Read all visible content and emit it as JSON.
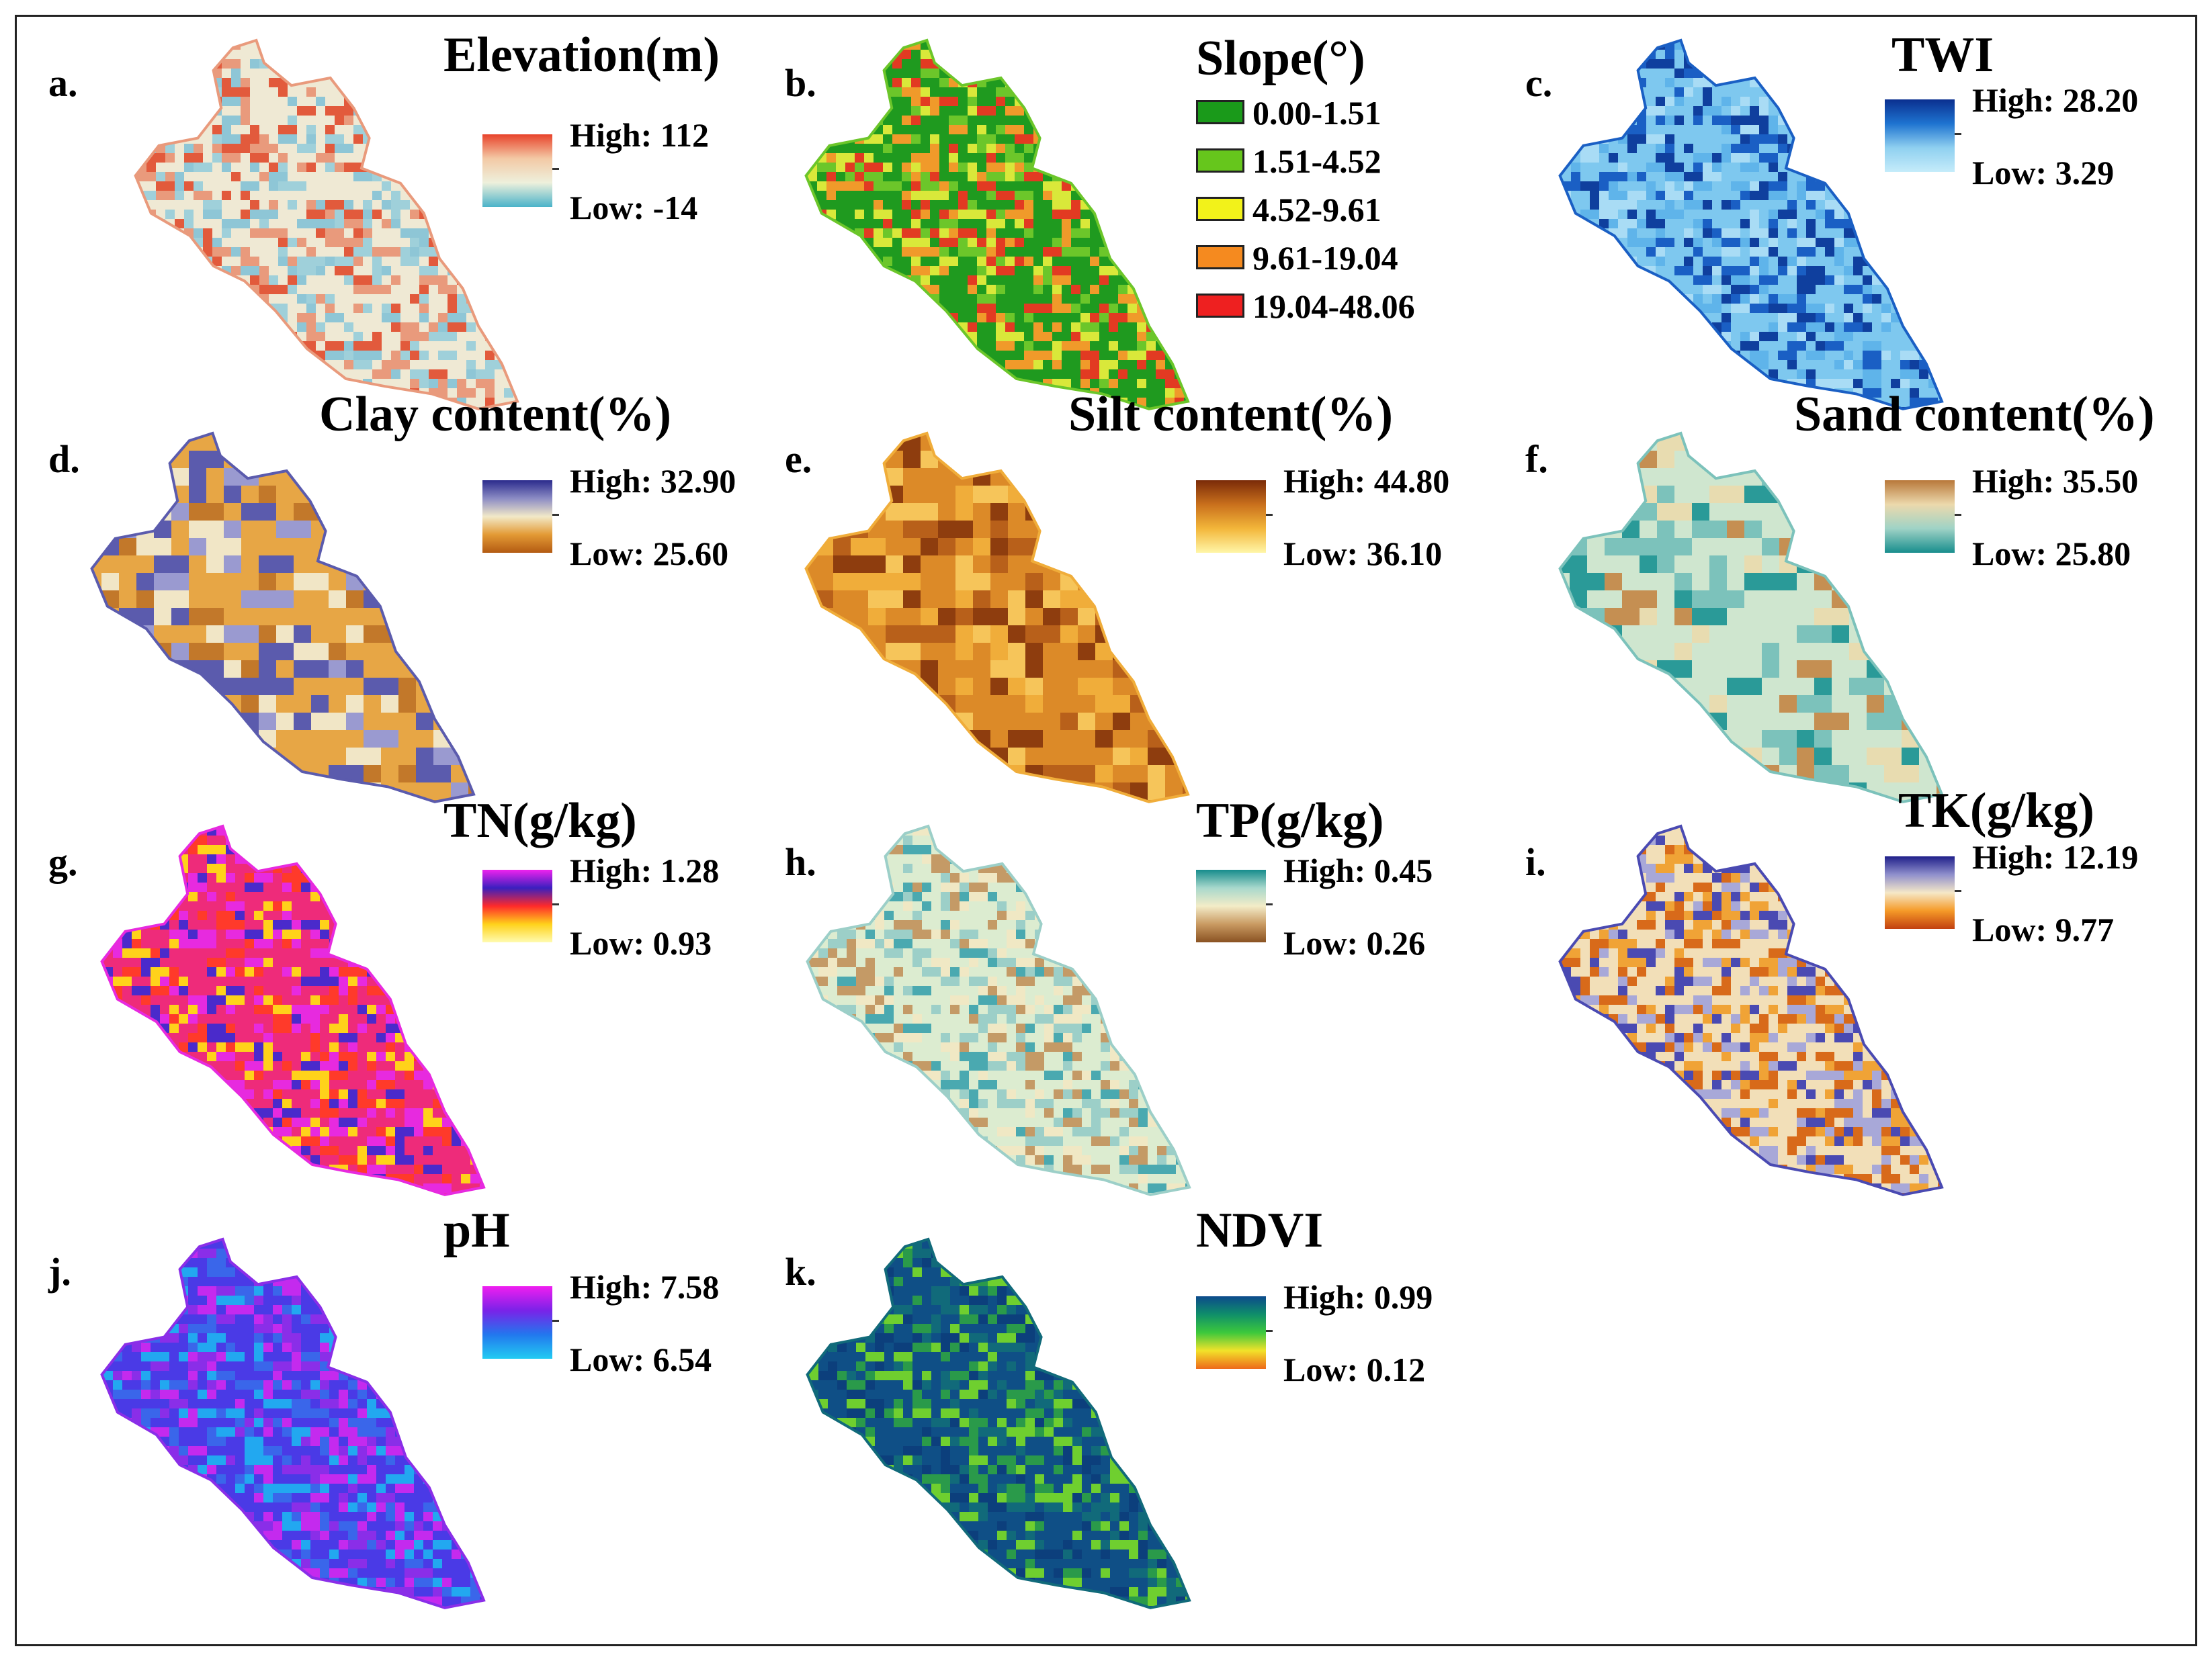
{
  "panels": [
    {
      "id": "a",
      "letter": "a.",
      "title": "Elevation(m)",
      "legend": {
        "type": "gradient",
        "high": "High: 112",
        "low": "Low: -14",
        "colors": [
          "#e8432b",
          "#f3c9a5",
          "#eef0dc",
          "#4bb3c9"
        ]
      },
      "map_colors": [
        "#efe9d4",
        "#e99a7c",
        "#9fd0da",
        "#e25a3c",
        "#8ec6d6"
      ]
    },
    {
      "id": "b",
      "letter": "b.",
      "title": "Slope(°)",
      "legend": {
        "type": "classes",
        "classes": [
          {
            "label": "0.00-1.51",
            "color": "#1a9a1a"
          },
          {
            "label": "1.51-4.52",
            "color": "#66c61c"
          },
          {
            "label": "4.52-9.61",
            "color": "#f2f21a"
          },
          {
            "label": "9.61-19.04",
            "color": "#f58a1f"
          },
          {
            "label": "19.04-48.06",
            "color": "#ee2020"
          }
        ]
      },
      "map_colors": [
        "#1f9a1f",
        "#6cc62a",
        "#d9e83a",
        "#f09a2a",
        "#e23a22"
      ]
    },
    {
      "id": "c",
      "letter": "c.",
      "title": "TWI",
      "legend": {
        "type": "gradient",
        "high": "High: 28.20",
        "low": "Low: 3.29",
        "colors": [
          "#0a2f8f",
          "#1e73d0",
          "#8fd0f0",
          "#c5ecfa"
        ]
      },
      "map_colors": [
        "#7ec8ef",
        "#1a5fc4",
        "#a9dcf5",
        "#0f3f9e",
        "#5fb4ea"
      ]
    },
    {
      "id": "d",
      "letter": "d.",
      "title": "Clay content(%)",
      "legend": {
        "type": "gradient",
        "high": "High: 32.90",
        "low": "Low: 25.60",
        "colors": [
          "#2b2b8c",
          "#8b8bc4",
          "#f2e9c8",
          "#e39a35",
          "#b35a12"
        ]
      },
      "map_colors": [
        "#e7a645",
        "#5b5bad",
        "#f1e6c6",
        "#c2782a",
        "#9a9ad0"
      ]
    },
    {
      "id": "e",
      "letter": "e.",
      "title": "Silt content(%)",
      "legend": {
        "type": "gradient",
        "high": "High: 44.80",
        "low": "Low: 36.10",
        "colors": [
          "#7a2a08",
          "#c9701c",
          "#f3b63a",
          "#fff6a8"
        ]
      },
      "map_colors": [
        "#dc8a28",
        "#f0ad3a",
        "#b8601a",
        "#f6c55a",
        "#8e3d0e"
      ]
    },
    {
      "id": "f",
      "letter": "f.",
      "title": "Sand content(%)",
      "legend": {
        "type": "gradient",
        "high": "High: 35.50",
        "low": "Low: 25.80",
        "colors": [
          "#b8783a",
          "#ecd9ac",
          "#9fd3c6",
          "#188d8d"
        ]
      },
      "map_colors": [
        "#cfe6cf",
        "#7cc2bb",
        "#e8dcb0",
        "#2a9a98",
        "#c58f52"
      ]
    },
    {
      "id": "g",
      "letter": "g.",
      "title": "TN(g/kg)",
      "legend": {
        "type": "gradient",
        "high": "High: 1.28",
        "low": "Low: 0.93",
        "colors": [
          "#ee22ee",
          "#3a1fbf",
          "#ff2a2a",
          "#ffd21a",
          "#fffbb0"
        ]
      },
      "map_colors": [
        "#ee2b7a",
        "#e72adf",
        "#ffd21a",
        "#ff3a2a",
        "#4a2acb"
      ]
    },
    {
      "id": "h",
      "letter": "h.",
      "title": "TP(g/kg)",
      "legend": {
        "type": "gradient",
        "high": "High: 0.45",
        "low": "Low: 0.26",
        "colors": [
          "#168c8c",
          "#a8d8cc",
          "#f3ecc8",
          "#c99a62",
          "#8a5222"
        ]
      },
      "map_colors": [
        "#dcecd0",
        "#9ccfc8",
        "#f0e8c4",
        "#4aa9b0",
        "#c49a66"
      ]
    },
    {
      "id": "i",
      "letter": "i.",
      "title": "TK(g/kg)",
      "legend": {
        "type": "gradient",
        "high": "High: 12.19",
        "low": "Low: 9.77",
        "colors": [
          "#1f1f8a",
          "#8f8fcc",
          "#f5e8c8",
          "#f59a28",
          "#c24010"
        ]
      },
      "map_colors": [
        "#f2dfb8",
        "#4a4ab2",
        "#f0a336",
        "#a8a8d8",
        "#d86a1a"
      ]
    },
    {
      "id": "j",
      "letter": "j.",
      "title": "pH",
      "legend": {
        "type": "gradient",
        "high": "High: 7.58",
        "low": "Low: 6.54",
        "colors": [
          "#f01ef0",
          "#7a22e8",
          "#2277ee",
          "#22ccf2"
        ]
      },
      "map_colors": [
        "#4a3ae6",
        "#8a2ee8",
        "#22a8f0",
        "#c42aee",
        "#3a66ea"
      ]
    },
    {
      "id": "k",
      "letter": "k.",
      "title": "NDVI",
      "legend": {
        "type": "gradient",
        "high": "High: 0.99",
        "low": "Low: 0.12",
        "colors": [
          "#0c4a8c",
          "#0f8f6a",
          "#3cc83c",
          "#f2e22a",
          "#ee6a1a"
        ]
      },
      "map_colors": [
        "#0f4f86",
        "#116a7a",
        "#2a9a4a",
        "#0c3f7c",
        "#6fcf2f"
      ]
    }
  ]
}
